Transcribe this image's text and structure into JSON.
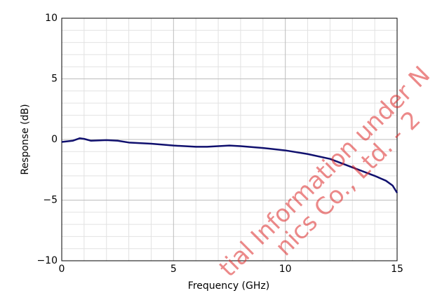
{
  "chart_data": {
    "type": "line",
    "xlabel": "Frequency (GHz)",
    "ylabel": "Response (dB)",
    "x": [
      0,
      0.5,
      0.8,
      1.0,
      1.3,
      2,
      2.5,
      3,
      4,
      5,
      6,
      6.5,
      7.5,
      8,
      9,
      10,
      11,
      12,
      13,
      14,
      14.5,
      14.8,
      15
    ],
    "series": [
      {
        "name": "Response",
        "color": "#10106e",
        "values": [
          -0.2,
          -0.1,
          0.1,
          0.05,
          -0.1,
          -0.05,
          -0.1,
          -0.25,
          -0.35,
          -0.5,
          -0.6,
          -0.6,
          -0.5,
          -0.55,
          -0.7,
          -0.9,
          -1.2,
          -1.6,
          -2.3,
          -3.0,
          -3.4,
          -3.8,
          -4.4
        ]
      }
    ],
    "xlim": [
      0,
      15
    ],
    "ylim": [
      -10,
      10
    ],
    "xticks": [
      0,
      5,
      10,
      15
    ],
    "yticks": [
      {
        "value": -10,
        "label": "−10"
      },
      {
        "value": -5,
        "label": "−5"
      },
      0,
      5,
      10
    ],
    "xminor_ticks": [
      1,
      2,
      3,
      4,
      6,
      7,
      8,
      9,
      11,
      12,
      13,
      14
    ],
    "yminor_ticks": [
      -9,
      -8,
      -7,
      -6,
      -4,
      -3,
      -2,
      -1,
      1,
      2,
      3,
      4,
      6,
      7,
      8,
      9
    ],
    "grid": true,
    "annotations": [
      "tial Information under N",
      "nics Co., Ltd. - 2"
    ]
  }
}
